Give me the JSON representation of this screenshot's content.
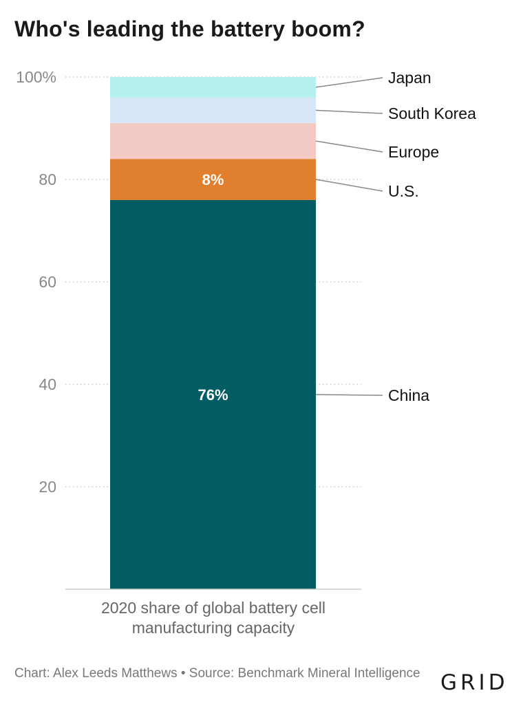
{
  "title": "Who's leading the battery boom?",
  "footer": {
    "credit": "Chart: Alex Leeds Matthews • Source: Benchmark Mineral Intelligence"
  },
  "logo": "GRID",
  "colors": {
    "china": "#015c64",
    "us": "#e07f2d",
    "europe": "#f3c9c4",
    "south_korea": "#d6e6f7",
    "japan": "#b4f0ee"
  },
  "chart_data": {
    "type": "bar",
    "stacked": true,
    "categories": [
      "2020 share of global battery cell manufacturing capacity"
    ],
    "xlabel_lines": [
      "2020 share of global battery cell",
      "manufacturing capacity"
    ],
    "y_ticks": [
      {
        "value": 20,
        "label": "20"
      },
      {
        "value": 40,
        "label": "40"
      },
      {
        "value": 60,
        "label": "60"
      },
      {
        "value": 80,
        "label": "80"
      },
      {
        "value": 100,
        "label": "100%"
      }
    ],
    "ylim": [
      0,
      100
    ],
    "grid": true,
    "series": [
      {
        "name": "China",
        "values": [
          76
        ],
        "color": "#015c64",
        "label": "76%"
      },
      {
        "name": "U.S.",
        "values": [
          8
        ],
        "color": "#e07f2d",
        "label": "8%"
      },
      {
        "name": "Europe",
        "values": [
          7
        ],
        "color": "#f3c9c4",
        "label": ""
      },
      {
        "name": "South Korea",
        "values": [
          5
        ],
        "color": "#d6e6f7",
        "label": ""
      },
      {
        "name": "Japan",
        "values": [
          4
        ],
        "color": "#b4f0ee",
        "label": ""
      }
    ]
  }
}
